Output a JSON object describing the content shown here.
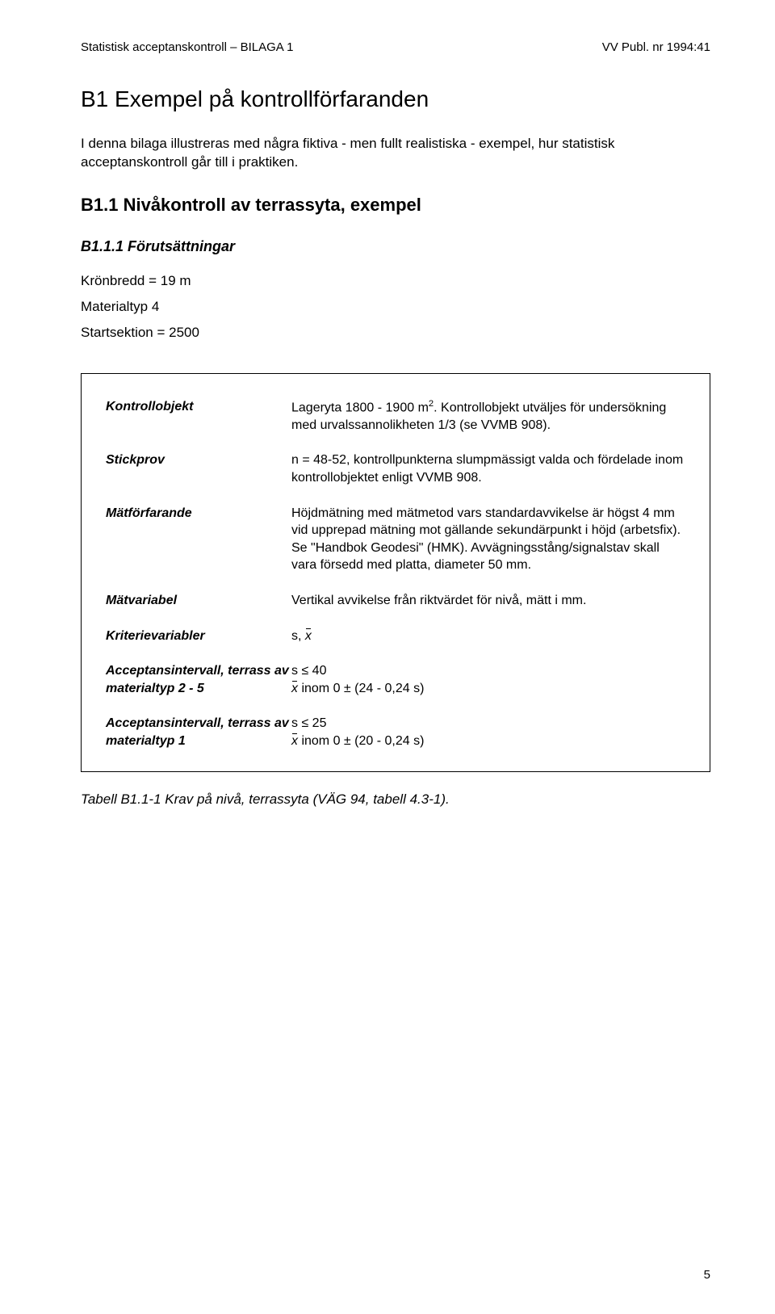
{
  "header": {
    "left": "Statistisk acceptanskontroll – BILAGA 1",
    "right": "VV Publ. nr 1994:41"
  },
  "title": "B1 Exempel på kontrollförfaranden",
  "intro": "I denna bilaga illustreras med några fiktiva - men fullt realistiska - exempel, hur statistisk acceptanskontroll går till i praktiken.",
  "section_h2": "B1.1 Nivåkontroll av terrassyta, exempel",
  "section_h3": "B1.1.1 Förutsättningar",
  "prereq": {
    "line1": "Krönbredd = 19 m",
    "line2": "Materialtyp 4",
    "line3": "Startsektion = 2500"
  },
  "table": {
    "rows": [
      {
        "label": "Kontrollobjekt",
        "value_pre": "Lageryta 1800 - 1900 m",
        "value_sup": "2",
        "value_post": ". Kontrollobjekt utväljes för undersökning med urvalssannolikheten 1/3 (se VVMB 908)."
      },
      {
        "label": "Stickprov",
        "value": "n = 48-52, kontrollpunkterna slumpmässigt valda och fördelade inom kontrollobjektet enligt VVMB 908."
      },
      {
        "label": "Mätförfarande",
        "value": "Höjdmätning med mätmetod vars standardavvikelse är högst 4 mm vid upprepad mätning mot gällande sekundärpunkt i höjd (arbetsfix). Se \"Handbok Geodesi\" (HMK). Avvägningsstång/signalstav skall vara försedd med platta, diameter 50 mm."
      },
      {
        "label": "Mätvariabel",
        "value": "Vertikal avvikelse från riktvärdet för nivå, mätt i mm."
      },
      {
        "label": "Kriterievariabler",
        "value_pre": "s, ",
        "has_xbar": true
      },
      {
        "label": "Acceptansintervall, terrass av materialtyp 2 - 5",
        "line1": "s ≤ 40",
        "line2_post": " inom 0 ± (24 - 0,24 s)",
        "has_xbar_line2": true
      },
      {
        "label": "Acceptansintervall, terrass av materialtyp 1",
        "line1": "s ≤ 25",
        "line2_post": " inom 0 ± (20 - 0,24 s)",
        "has_xbar_line2": true
      }
    ]
  },
  "caption": "Tabell B1.1-1 Krav på nivå, terrassyta (VÄG 94, tabell 4.3-1).",
  "pagenum": "5"
}
